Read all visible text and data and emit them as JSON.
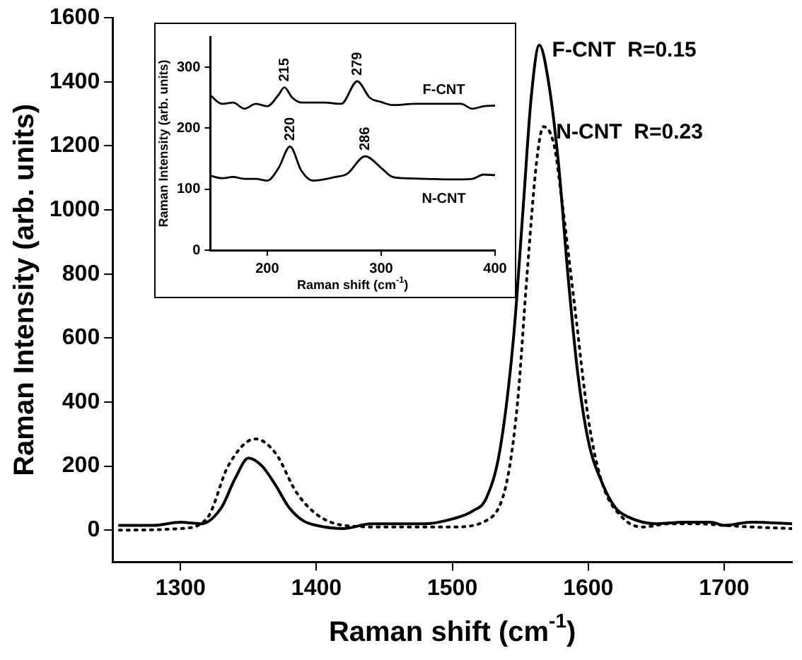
{
  "chart_data": [
    {
      "type": "line",
      "xlabel": "Raman shift (cm$^{-1}$)",
      "ylabel": "Raman Intensity (arb. units)",
      "xlim": [
        1250,
        1750
      ],
      "ylim": [
        -100,
        1600
      ],
      "xticks": [
        1300,
        1400,
        1500,
        1600,
        1700
      ],
      "yticks": [
        0,
        200,
        400,
        600,
        800,
        1000,
        1200,
        1400,
        1600
      ],
      "marker": "none",
      "series": [
        {
          "color": "#000000",
          "line_style": "solid",
          "x": [
            1255,
            1280,
            1300,
            1315,
            1330,
            1340,
            1350,
            1360,
            1370,
            1380,
            1390,
            1400,
            1420,
            1440,
            1460,
            1480,
            1500,
            1515,
            1525,
            1535,
            1545,
            1552,
            1558,
            1564,
            1570,
            1578,
            1585,
            1592,
            1600,
            1610,
            1620,
            1630,
            1650,
            1670,
            1690,
            1700,
            1720,
            1750
          ],
          "values": [
            15,
            15,
            25,
            20,
            70,
            160,
            225,
            200,
            140,
            70,
            30,
            15,
            5,
            20,
            20,
            20,
            35,
            60,
            100,
            250,
            600,
            1000,
            1350,
            1515,
            1420,
            1150,
            800,
            500,
            280,
            150,
            70,
            40,
            20,
            25,
            25,
            15,
            25,
            20
          ]
        },
        {
          "color": "#000000",
          "line_style": "dotted",
          "x": [
            1255,
            1300,
            1320,
            1335,
            1355,
            1370,
            1385,
            1400,
            1420,
            1450,
            1500,
            1525,
            1540,
            1548,
            1555,
            1562,
            1567,
            1575,
            1580,
            1590,
            1600,
            1610,
            1625,
            1640,
            1660,
            1680,
            1700,
            1720,
            1750
          ],
          "values": [
            0,
            5,
            40,
            200,
            285,
            240,
            120,
            50,
            15,
            10,
            10,
            30,
            150,
            400,
            800,
            1150,
            1260,
            1200,
            1050,
            700,
            350,
            150,
            40,
            10,
            20,
            20,
            15,
            10,
            5
          ]
        }
      ],
      "annotations": [
        {
          "text": "F-CNT  R=0.15",
          "x": 1564,
          "y": 1515
        },
        {
          "text": "N-CNT  R=0.23",
          "x": 1567,
          "y": 1260
        }
      ]
    },
    {
      "type": "line",
      "xlabel": "Raman shift (cm$^{-1}$)",
      "ylabel": "Raman Intensity (arb. units)",
      "xlim": [
        150,
        400
      ],
      "ylim": [
        0,
        350
      ],
      "xticks": [
        200,
        300,
        400
      ],
      "yticks": [
        0,
        100,
        200,
        300
      ],
      "marker": "none",
      "series": [
        {
          "color": "#000000",
          "line_style": "solid",
          "x": [
            150,
            160,
            170,
            180,
            190,
            200,
            210,
            215,
            222,
            230,
            250,
            265,
            279,
            290,
            300,
            310,
            330,
            350,
            370,
            380,
            390,
            400
          ],
          "values": [
            254,
            240,
            242,
            232,
            240,
            236,
            255,
            267,
            250,
            242,
            242,
            240,
            277,
            250,
            243,
            238,
            240,
            240,
            240,
            232,
            236,
            237
          ]
        },
        {
          "color": "#000000",
          "line_style": "solid",
          "x": [
            150,
            160,
            170,
            180,
            190,
            200,
            210,
            220,
            230,
            240,
            260,
            270,
            286,
            300,
            310,
            320,
            340,
            360,
            380,
            390,
            400
          ],
          "values": [
            122,
            118,
            120,
            117,
            117,
            114,
            135,
            170,
            130,
            114,
            120,
            125,
            154,
            135,
            120,
            118,
            117,
            116,
            117,
            124,
            123
          ]
        }
      ],
      "annotations": [
        {
          "text": "215",
          "x": 215,
          "y": 267
        },
        {
          "text": "279",
          "x": 279,
          "y": 277
        },
        {
          "text": "220",
          "x": 220,
          "y": 170
        },
        {
          "text": "286",
          "x": 286,
          "y": 154
        },
        "F-CNT",
        "N-CNT"
      ]
    }
  ]
}
